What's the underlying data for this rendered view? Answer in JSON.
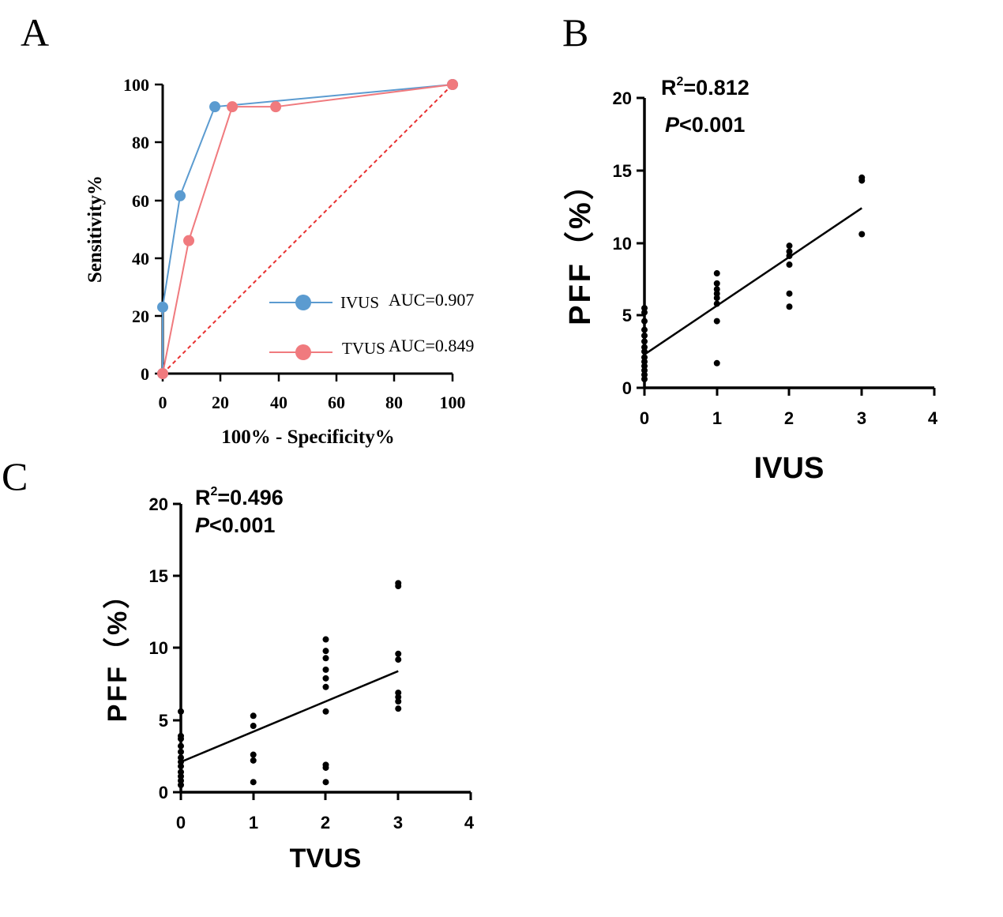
{
  "chart_data": [
    {
      "panel_label": "A",
      "type": "line",
      "xlabel": "100% - Specificity%",
      "ylabel": "Sensitivity%",
      "xlim": [
        0,
        100
      ],
      "ylim": [
        0,
        100
      ],
      "xticks": [
        "0",
        "20",
        "40",
        "60",
        "80",
        "100"
      ],
      "yticks": [
        "0",
        "20",
        "40",
        "60",
        "80",
        "100"
      ],
      "grid": false,
      "legend_position": "bottom-right",
      "series": [
        {
          "name": "IVUS",
          "auc_label": "AUC=0.907",
          "color": "#5b9bd0",
          "points": [
            [
              0,
              0
            ],
            [
              0,
              23
            ],
            [
              6,
              61.5
            ],
            [
              18,
              92.3
            ],
            [
              100,
              100
            ]
          ]
        },
        {
          "name": "TVUS",
          "auc_label": "AUC=0.849",
          "color": "#f07a7e",
          "points": [
            [
              0,
              0
            ],
            [
              9,
              46
            ],
            [
              24,
              92.3
            ],
            [
              39,
              92.3
            ],
            [
              100,
              100
            ]
          ]
        }
      ],
      "reference_line": {
        "style": "dashed",
        "color": "#e83030",
        "points": [
          [
            0,
            0
          ],
          [
            100,
            100
          ]
        ]
      }
    },
    {
      "panel_label": "B",
      "type": "scatter",
      "xlabel": "IVUS",
      "ylabel": "PFF（%）",
      "xlim": [
        0,
        4
      ],
      "ylim": [
        0,
        20
      ],
      "xticks": [
        "0",
        "1",
        "2",
        "3",
        "4"
      ],
      "yticks": [
        "0",
        "5",
        "10",
        "15",
        "20"
      ],
      "stat_r2": "=0.812",
      "stat_p": "<0.001",
      "points": [
        [
          0,
          0.6
        ],
        [
          0,
          0.9
        ],
        [
          0,
          1.2
        ],
        [
          0,
          1.5
        ],
        [
          0,
          1.8
        ],
        [
          0,
          2.1
        ],
        [
          0,
          2.5
        ],
        [
          0,
          2.8
        ],
        [
          0,
          3.2
        ],
        [
          0,
          3.6
        ],
        [
          0,
          4.0
        ],
        [
          0,
          4.6
        ],
        [
          0,
          5.2
        ],
        [
          0,
          5.5
        ],
        [
          1,
          1.7
        ],
        [
          1,
          4.6
        ],
        [
          1,
          5.8
        ],
        [
          1,
          6.2
        ],
        [
          1,
          6.5
        ],
        [
          1,
          6.8
        ],
        [
          1,
          7.2
        ],
        [
          1,
          7.9
        ],
        [
          2,
          5.6
        ],
        [
          2,
          6.5
        ],
        [
          2,
          8.5
        ],
        [
          2,
          9.1
        ],
        [
          2,
          9.4
        ],
        [
          2,
          9.8
        ],
        [
          3,
          10.6
        ],
        [
          3,
          14.3
        ],
        [
          3,
          14.5
        ]
      ],
      "fit": {
        "x": [
          0,
          3
        ],
        "y": [
          2.3,
          12.4
        ]
      }
    },
    {
      "panel_label": "C",
      "type": "scatter",
      "xlabel": "TVUS",
      "ylabel": "PFF（%）",
      "xlim": [
        0,
        4
      ],
      "ylim": [
        0,
        20
      ],
      "xticks": [
        "0",
        "1",
        "2",
        "3",
        "4"
      ],
      "yticks": [
        "0",
        "5",
        "10",
        "15",
        "20"
      ],
      "stat_r2": "=0.496",
      "stat_p": "<0.001",
      "points": [
        [
          0,
          0.5
        ],
        [
          0,
          0.8
        ],
        [
          0,
          1.1
        ],
        [
          0,
          1.4
        ],
        [
          0,
          1.8
        ],
        [
          0,
          2.1
        ],
        [
          0,
          2.4
        ],
        [
          0,
          2.8
        ],
        [
          0,
          3.2
        ],
        [
          0,
          3.7
        ],
        [
          0,
          3.9
        ],
        [
          0,
          5.6
        ],
        [
          1,
          0.7
        ],
        [
          1,
          2.2
        ],
        [
          1,
          2.6
        ],
        [
          1,
          4.6
        ],
        [
          1,
          5.3
        ],
        [
          2,
          0.7
        ],
        [
          2,
          1.7
        ],
        [
          2,
          1.9
        ],
        [
          2,
          5.6
        ],
        [
          2,
          7.3
        ],
        [
          2,
          7.9
        ],
        [
          2,
          8.5
        ],
        [
          2,
          9.3
        ],
        [
          2,
          9.8
        ],
        [
          2,
          10.6
        ],
        [
          3,
          5.8
        ],
        [
          3,
          6.3
        ],
        [
          3,
          6.6
        ],
        [
          3,
          6.9
        ],
        [
          3,
          9.2
        ],
        [
          3,
          9.6
        ],
        [
          3,
          14.3
        ],
        [
          3,
          14.5
        ]
      ],
      "fit": {
        "x": [
          0,
          3
        ],
        "y": [
          2.1,
          8.4
        ]
      }
    }
  ]
}
